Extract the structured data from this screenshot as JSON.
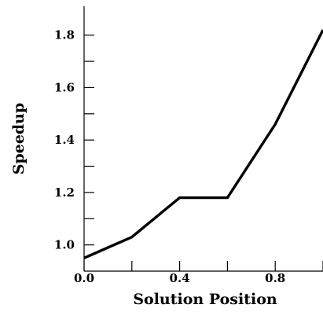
{
  "chart_data": {
    "type": "line",
    "title": "",
    "xlabel": "Solution Position",
    "ylabel": "Speedup",
    "xlim": [
      0.0,
      1.0
    ],
    "ylim": [
      0.9,
      1.91
    ],
    "x_tick_values": [
      0.0,
      0.2,
      0.4,
      0.6,
      0.8,
      1.0
    ],
    "x_tick_labels": [
      "0.0",
      "",
      "0.4",
      "",
      "0.8",
      ""
    ],
    "y_tick_values": [
      1.0,
      1.1,
      1.2,
      1.3,
      1.4,
      1.5,
      1.6,
      1.7,
      1.8
    ],
    "y_tick_labels": [
      "1.0",
      "",
      "1.2",
      "",
      "1.4",
      "",
      "1.6",
      "",
      "1.8"
    ],
    "grid": false,
    "series": [
      {
        "x": [
          0.0,
          0.2,
          0.4,
          0.6,
          0.8,
          1.0
        ],
        "y": [
          0.95,
          1.03,
          1.18,
          1.18,
          1.46,
          1.82
        ],
        "color": "#000000"
      }
    ]
  }
}
